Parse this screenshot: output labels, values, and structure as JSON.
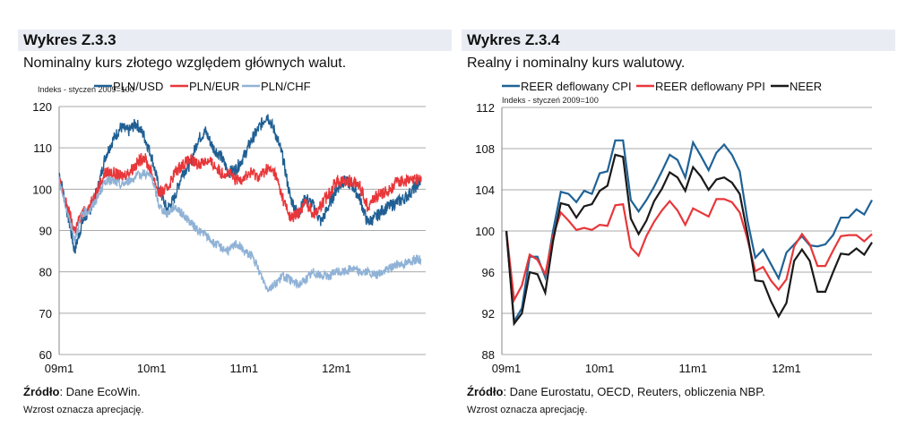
{
  "left": {
    "title": "Wykres Z.3.3",
    "subtitle": "Nominalny kurs złotego względem głównych walut.",
    "source_label": "Źródło",
    "source_text": ": Dane EcoWin.",
    "note": "Wzrost oznacza aprecjację."
  },
  "right": {
    "title": "Wykres Z.3.4",
    "subtitle": "Realny i nominalny kurs walutowy.",
    "source_label": "Źródło",
    "source_text": ": Dane Eurostatu, OECD, Reuters, obliczenia NBP.",
    "note": "Wzrost oznacza aprecjację."
  },
  "chart_data": [
    {
      "type": "line",
      "ylabel": "Indeks - styczeń 2009=100",
      "ylim": [
        60,
        120
      ],
      "yticks": [
        60,
        70,
        80,
        90,
        100,
        110,
        120
      ],
      "xticks": [
        "09m1",
        "10m1",
        "11m1",
        "12m1"
      ],
      "grid": true,
      "legend": "top",
      "series": [
        {
          "name": "PLN/USD",
          "color": "#1f5f93",
          "values": [
            104,
            95,
            85,
            92,
            95,
            100,
            108,
            112,
            115,
            114,
            116,
            113,
            108,
            100,
            95,
            98,
            104,
            106,
            112,
            114,
            110,
            108,
            104,
            105,
            108,
            112,
            115,
            118,
            114,
            108,
            98,
            94,
            98,
            96,
            92,
            96,
            100,
            102,
            101,
            98,
            92,
            93,
            95,
            96,
            97,
            98,
            100,
            102
          ]
        },
        {
          "name": "PLN/EUR",
          "color": "#e8373a",
          "values": [
            102,
            96,
            90,
            94,
            96,
            100,
            104,
            104,
            103,
            104,
            106,
            108,
            104,
            99,
            100,
            104,
            106,
            107,
            106,
            107,
            106,
            104,
            104,
            102,
            103,
            104,
            103,
            105,
            104,
            98,
            93,
            94,
            97,
            94,
            96,
            99,
            102,
            102,
            102,
            101,
            96,
            98,
            99,
            100,
            102,
            102,
            102,
            103
          ]
        },
        {
          "name": "PLN/CHF",
          "color": "#8fb2d6",
          "values": [
            102,
            95,
            88,
            94,
            95,
            98,
            102,
            102,
            101,
            102,
            103,
            104,
            103,
            96,
            94,
            96,
            94,
            92,
            90,
            89,
            87,
            86,
            85,
            87,
            85,
            84,
            80,
            76,
            77,
            79,
            78,
            77,
            78,
            80,
            79,
            79,
            80,
            80,
            81,
            80,
            80,
            79,
            80,
            81,
            82,
            82,
            83,
            83
          ]
        }
      ]
    },
    {
      "type": "line",
      "ylabel": "Indeks - styczeń 2009=100",
      "ylim": [
        88,
        112
      ],
      "yticks": [
        88,
        92,
        96,
        100,
        104,
        108,
        112
      ],
      "xticks": [
        "09m1",
        "10m1",
        "11m1",
        "12m1"
      ],
      "grid": true,
      "legend": "top",
      "series": [
        {
          "name": "REER deflowany CPI",
          "color": "#1f6296",
          "values": [
            100,
            91.2,
            92.5,
            97.5,
            97.5,
            95.5,
            100,
            103.8,
            103.6,
            102.8,
            103.9,
            103.6,
            105.6,
            105.8,
            108.8,
            108.8,
            103,
            101.9,
            103,
            104.3,
            105.8,
            107.4,
            106.9,
            105.2,
            108.6,
            107.3,
            105.9,
            107.6,
            108.4,
            107.4,
            105.8,
            101,
            97.4,
            98.2,
            96.8,
            95.4,
            97.9,
            98.7,
            99.5,
            98.6,
            98.5,
            98.7,
            99.6,
            101.3,
            101.3,
            102.1,
            101.6,
            103
          ]
        },
        {
          "name": "REER deflowany PPI",
          "color": "#e8373a",
          "values": [
            100,
            93.3,
            94.7,
            97.7,
            97.2,
            95.8,
            99.5,
            101.8,
            101,
            100.1,
            100.3,
            100.1,
            100.6,
            100.5,
            102.5,
            102.6,
            98.4,
            97.6,
            99.5,
            100.9,
            102,
            102.9,
            102,
            100.6,
            102.2,
            101.8,
            101.4,
            103.1,
            103.1,
            102.8,
            101.8,
            99.2,
            96.1,
            96.5,
            95.2,
            94.3,
            95.3,
            98.5,
            99.7,
            98.7,
            96.6,
            96.6,
            98.1,
            99.5,
            99.6,
            99.6,
            99,
            99.7
          ]
        },
        {
          "name": "NEER",
          "color": "#1a1a1a",
          "values": [
            100,
            91,
            92,
            96,
            95.8,
            94,
            99,
            102.7,
            102.5,
            101.3,
            102.4,
            102.6,
            103.9,
            104.4,
            107.4,
            107.2,
            101.2,
            99.7,
            101,
            102.9,
            104.1,
            105.7,
            105.2,
            103.9,
            106.2,
            105.3,
            104,
            105,
            105.2,
            104.7,
            103.6,
            99.7,
            95.2,
            95.1,
            93.2,
            91.7,
            93,
            97.1,
            98.2,
            97.1,
            94.1,
            94.1,
            96,
            97.8,
            97.7,
            98.3,
            97.7,
            98.9
          ]
        }
      ]
    }
  ]
}
